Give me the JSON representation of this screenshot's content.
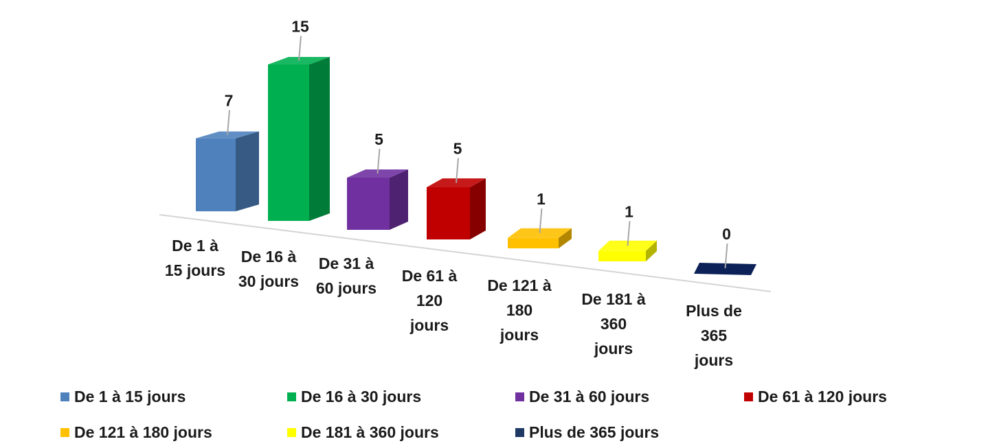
{
  "chart_data": {
    "type": "bar",
    "categories": [
      "De 1 à 15 jours",
      "De 16 à 30 jours",
      "De 31 à 60 jours",
      "De 61 à 120 jours",
      "De 121 à 180 jours",
      "De 181 à 360 jours",
      "Plus de 365 jours"
    ],
    "category_label_lines": [
      [
        "De 1 à",
        "15 jours"
      ],
      [
        "De 16 à",
        "30 jours"
      ],
      [
        "De 31 à",
        "60 jours"
      ],
      [
        "De 61 à",
        "120",
        "jours"
      ],
      [
        "De 121 à",
        "180",
        "jours"
      ],
      [
        "De 181 à",
        "360",
        "jours"
      ],
      [
        "Plus de",
        "365",
        "jours"
      ]
    ],
    "values": [
      7,
      15,
      5,
      5,
      1,
      1,
      0
    ],
    "colors": [
      "#4f81bd",
      "#00b050",
      "#7030a0",
      "#c00000",
      "#ffc000",
      "#ffff00",
      "#0c2158"
    ],
    "legend": {
      "position": "bottom",
      "entries": [
        "De 1 à 15 jours",
        "De 16 à 30 jours",
        "De 31 à 60 jours",
        "De 61 à 120 jours",
        "De 121 à 180 jours",
        "De 181 à 360 jours",
        "Plus de 365 jours"
      ]
    },
    "data_labels": true,
    "style": "3d-column-perspective",
    "grid": false,
    "title": "",
    "xlabel": "",
    "ylabel": ""
  }
}
